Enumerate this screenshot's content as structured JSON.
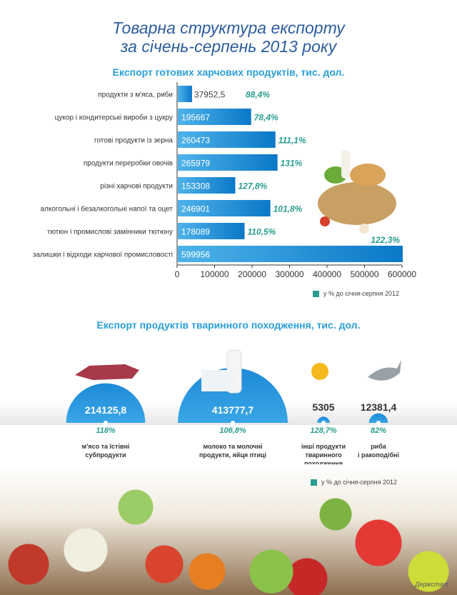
{
  "title_line1": "Товарна структура експорту",
  "title_line2": "за січень-серпень 2013 року",
  "source": "Держстат",
  "colors": {
    "bar": "#1a8bd6",
    "percent": "#2a9d8f",
    "title": "#2b5c9e",
    "subtitle": "#2a9fd8"
  },
  "chart_data": [
    {
      "type": "bar",
      "orientation": "horizontal",
      "title": "Експорт готових харчових продуктів, тис. дол.",
      "categories": [
        "продукти з м'яса, риби",
        "цукор і кондитерські вироби з цукру",
        "готові продукти із зерна",
        "продукти переробки овочів",
        "різні харчові продукти",
        "алкогольні і безалкогольні напої та оцет",
        "тютюн і промислові замінники тютюну",
        "залишки і відходи харчової промисловості"
      ],
      "values": [
        37952.5,
        195667,
        260473,
        265979,
        153308,
        246901,
        178089,
        599956
      ],
      "value_labels": [
        "37952,5",
        "195667",
        "260473",
        "265979",
        "153308",
        "246901",
        "178089",
        "599956"
      ],
      "percent_labels": [
        "88,4%",
        "78,4%",
        "111,1%",
        "131%",
        "127,8%",
        "101,8%",
        "110,5%",
        "122,3%"
      ],
      "xlim": [
        0,
        600000
      ],
      "xticks": [
        "0",
        "100000",
        "200000",
        "300000",
        "400000",
        "500000",
        "600000"
      ],
      "legend": "у % до січня-серпня 2012",
      "legend_position": "bottom-right",
      "grid": false
    },
    {
      "type": "bubble",
      "title": "Експорт продуктів тваринного походження, тис. дол.",
      "categories": [
        "м'ясо та їстівні субпродукти",
        "молоко та молочні продукти, яйця птиці",
        "інші продукти тваринного походження",
        "риба і ракоподібні"
      ],
      "category_lines": [
        [
          "м'ясо та їстівні",
          "субпродукти"
        ],
        [
          "молоко та молочні",
          "продукти, яйця птиці"
        ],
        [
          "інші продукти",
          "тваринного",
          "походження"
        ],
        [
          "риба",
          "і ракоподібні"
        ]
      ],
      "values": [
        214125.8,
        413777.7,
        5305,
        12381.4
      ],
      "value_labels": [
        "214125,8",
        "413777,7",
        "5305",
        "12381,4"
      ],
      "percent_labels": [
        "118%",
        "106,8%",
        "128,7%",
        "82%"
      ],
      "icons": [
        "meat-icon",
        "milk-icon",
        "bee-honey-icon",
        "fish-icon"
      ],
      "legend": "у % до січня-серпня 2012",
      "legend_position": "bottom-right"
    }
  ]
}
